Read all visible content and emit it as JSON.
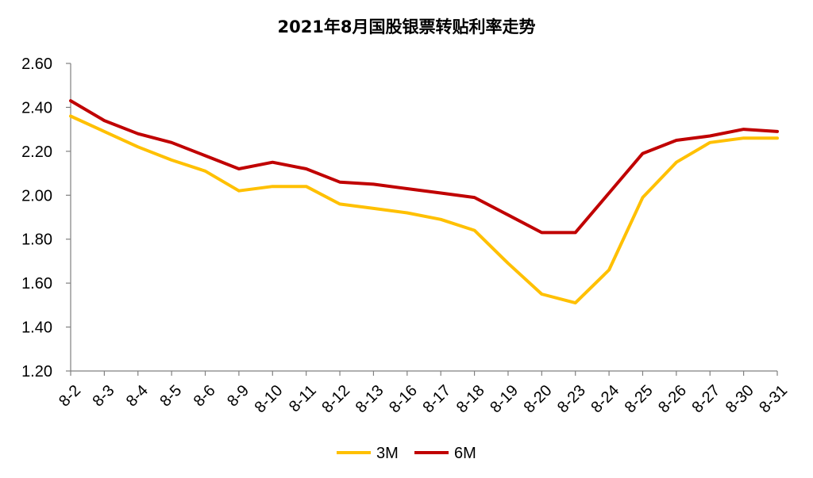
{
  "chart_data": {
    "type": "line",
    "title": "2021年8月国股银票转贴利率走势",
    "xlabel": "",
    "ylabel": "",
    "ylim": [
      1.2,
      2.6
    ],
    "yticks": [
      "1.20",
      "1.40",
      "1.60",
      "1.80",
      "2.00",
      "2.20",
      "2.40",
      "2.60"
    ],
    "categories": [
      "8-2",
      "8-3",
      "8-4",
      "8-5",
      "8-6",
      "8-9",
      "8-10",
      "8-11",
      "8-12",
      "8-13",
      "8-16",
      "8-17",
      "8-18",
      "8-19",
      "8-20",
      "8-23",
      "8-24",
      "8-25",
      "8-26",
      "8-27",
      "8-30",
      "8-31"
    ],
    "series": [
      {
        "name": "3M",
        "color": "#FFC000",
        "values": [
          2.36,
          2.29,
          2.22,
          2.16,
          2.11,
          2.02,
          2.04,
          2.04,
          1.96,
          1.94,
          1.92,
          1.89,
          1.84,
          1.69,
          1.55,
          1.51,
          1.66,
          1.99,
          2.15,
          2.24,
          2.26,
          2.26
        ]
      },
      {
        "name": "6M",
        "color": "#C00000",
        "values": [
          2.43,
          2.34,
          2.28,
          2.24,
          2.18,
          2.12,
          2.15,
          2.12,
          2.06,
          2.05,
          2.03,
          2.01,
          1.99,
          1.91,
          1.83,
          1.83,
          2.01,
          2.19,
          2.25,
          2.27,
          2.3,
          2.29
        ]
      }
    ],
    "grid": false,
    "legend": "bottom"
  }
}
